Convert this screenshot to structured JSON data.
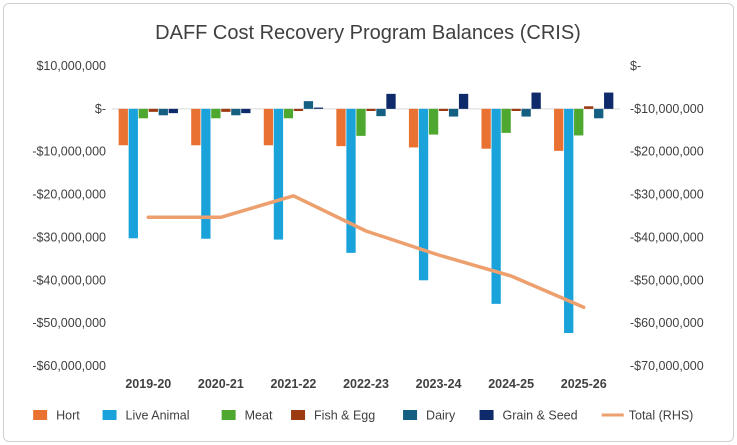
{
  "chart_data": {
    "type": "bar",
    "title": "DAFF Cost Recovery Program Balances (CRIS)",
    "categories": [
      "2019-20",
      "2020-21",
      "2021-22",
      "2022-23",
      "2023-24",
      "2024-25",
      "2025-26"
    ],
    "left_axis": {
      "ylim": [
        -60000000,
        10000000
      ],
      "ticks": [
        10000000,
        0,
        -10000000,
        -20000000,
        -30000000,
        -40000000,
        -50000000,
        -60000000
      ],
      "tick_labels": [
        "$10,000,000",
        "$-",
        "-$10,000,000",
        "-$20,000,000",
        "-$30,000,000",
        "-$40,000,000",
        "-$50,000,000",
        "-$60,000,000"
      ]
    },
    "right_axis": {
      "ylim": [
        -70000000,
        0
      ],
      "ticks": [
        0,
        -10000000,
        -20000000,
        -30000000,
        -40000000,
        -50000000,
        -60000000,
        -70000000
      ],
      "tick_labels": [
        "$-",
        "-$10,000,000",
        "-$20,000,000",
        "-$30,000,000",
        "-$40,000,000",
        "-$50,000,000",
        "-$60,000,000",
        "-$70,000,000"
      ]
    },
    "series": [
      {
        "name": "Hort",
        "color": "#E97132",
        "axis": "left",
        "values": [
          -8500000,
          -8500000,
          -8500000,
          -8700000,
          -9000000,
          -9300000,
          -9800000
        ]
      },
      {
        "name": "Live Animal",
        "color": "#1AA3DB",
        "axis": "left",
        "values": [
          -30200000,
          -30300000,
          -30500000,
          -33600000,
          -40000000,
          -45500000,
          -52300000
        ]
      },
      {
        "name": "Meat",
        "color": "#4EA72E",
        "axis": "left",
        "values": [
          -2200000,
          -2200000,
          -2200000,
          -6300000,
          -6000000,
          -5600000,
          -6200000
        ]
      },
      {
        "name": "Fish & Egg",
        "color": "#9C3A12",
        "axis": "left",
        "values": [
          -700000,
          -700000,
          -500000,
          -500000,
          -500000,
          -500000,
          600000
        ]
      },
      {
        "name": "Dairy",
        "color": "#156082",
        "axis": "left",
        "values": [
          -1500000,
          -1500000,
          1800000,
          -1700000,
          -1800000,
          -1800000,
          -2200000
        ]
      },
      {
        "name": "Grain & Seed",
        "color": "#0E2A6B",
        "axis": "left",
        "values": [
          -1000000,
          -1000000,
          300000,
          3500000,
          3500000,
          3800000,
          3800000
        ]
      },
      {
        "name": "Total (RHS)",
        "color": "#EE9F6E",
        "axis": "right",
        "type": "line",
        "values": [
          -35300000,
          -35300000,
          -30300000,
          -38500000,
          -44100000,
          -49000000,
          -56300000
        ]
      }
    ],
    "legend_position": "bottom",
    "grid": false
  }
}
